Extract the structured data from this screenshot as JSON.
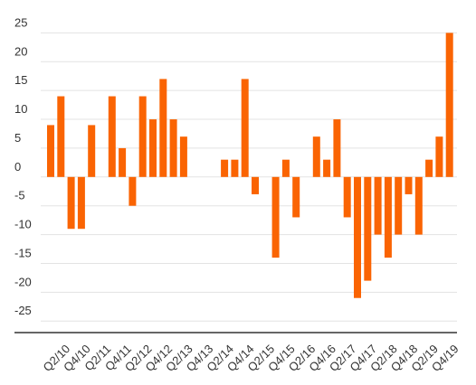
{
  "chart_data": {
    "type": "bar",
    "color": "#fa6403",
    "categories": [
      null,
      "Q2/10",
      null,
      "Q4/10",
      null,
      "Q2/11",
      null,
      "Q4/11",
      null,
      "Q2/12",
      null,
      "Q4/12",
      null,
      "Q2/13",
      null,
      "Q4/13",
      null,
      "Q2/14",
      null,
      "Q4/14",
      null,
      "Q2/15",
      null,
      "Q4/15",
      null,
      "Q2/16",
      null,
      "Q4/16",
      null,
      "Q2/17",
      null,
      "Q4/17",
      null,
      "Q2/18",
      null,
      "Q4/18",
      null,
      "Q2/19",
      null,
      "Q4/19"
    ],
    "values": [
      9,
      14,
      -9,
      -9,
      9,
      0,
      14,
      5,
      -5,
      14,
      10,
      17,
      10,
      7,
      0,
      0,
      0,
      3,
      3,
      17,
      -3,
      0,
      -14,
      3,
      -7,
      0,
      7,
      3,
      10,
      -7,
      -21,
      -18,
      -10,
      -14,
      -10,
      -3,
      -10,
      3,
      7,
      25
    ],
    "ylim": [
      -27,
      26
    ],
    "yticks": [
      -25,
      -20,
      -15,
      -10,
      -5,
      0,
      5,
      10,
      15,
      20,
      25
    ],
    "grid": true
  }
}
